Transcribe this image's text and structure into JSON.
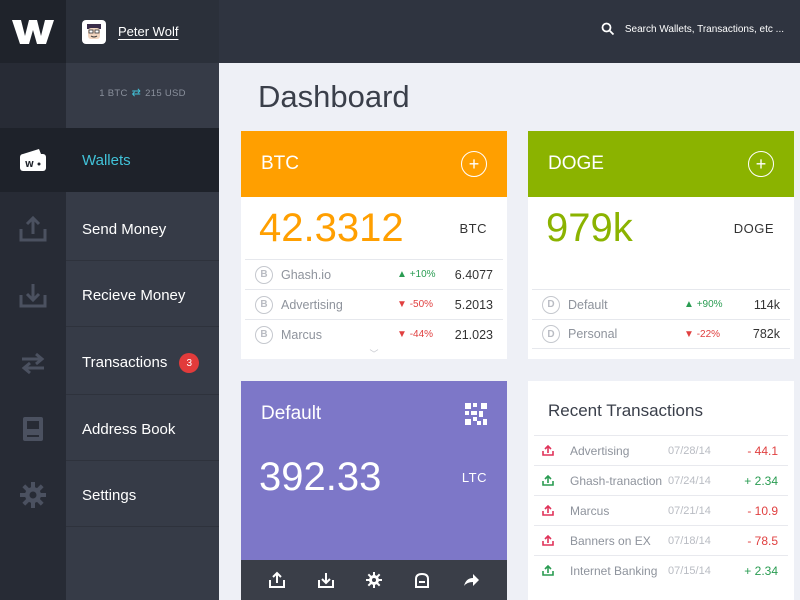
{
  "app": {
    "logo": "W"
  },
  "user": {
    "name": "Peter Wolf"
  },
  "rate": {
    "btc": "1 BTC",
    "usd": "215 USD"
  },
  "nav": {
    "items": [
      {
        "label": "Wallets",
        "icon": "wallet-icon",
        "active": true
      },
      {
        "label": "Send Money",
        "icon": "upload-icon"
      },
      {
        "label": "Recieve Money",
        "icon": "download-icon"
      },
      {
        "label": "Transactions",
        "icon": "transfer-icon",
        "badge": "3"
      },
      {
        "label": "Address Book",
        "icon": "book-icon"
      },
      {
        "label": "Settings",
        "icon": "gear-icon"
      }
    ]
  },
  "search": {
    "placeholder": "Search Wallets, Transactions, etc ..."
  },
  "page": {
    "title": "Dashboard"
  },
  "btc_card": {
    "title": "BTC",
    "value": "42.3312",
    "unit": "BTC",
    "color": "#ff9f00",
    "rows": [
      {
        "name": "Ghash.io",
        "delta": "+10%",
        "dir": "up",
        "amount": "6.4077",
        "coin": "B"
      },
      {
        "name": "Advertising",
        "delta": "-50%",
        "dir": "down",
        "amount": "5.2013",
        "coin": "B"
      },
      {
        "name": "Marcus",
        "delta": "-44%",
        "dir": "down",
        "amount": "21.023",
        "coin": "B"
      }
    ]
  },
  "doge_card": {
    "title": "DOGE",
    "value": "979k",
    "unit": "DOGE",
    "color": "#8bb300",
    "rows": [
      {
        "name": "Default",
        "delta": "+90%",
        "dir": "up",
        "amount": "114k",
        "coin": "D"
      },
      {
        "name": "Personal",
        "delta": "-22%",
        "dir": "down",
        "amount": "782k",
        "coin": "D"
      }
    ]
  },
  "default_card": {
    "title": "Default",
    "value": "392.33",
    "unit": "LTC",
    "color": "#7d77c8"
  },
  "recent": {
    "title": "Recent Transactions",
    "rows": [
      {
        "name": "Advertising",
        "date": "07/28/14",
        "amount": "- 44.1",
        "dir": "out"
      },
      {
        "name": "Ghash-tranaction",
        "date": "07/24/14",
        "amount": "+ 2.34",
        "dir": "in"
      },
      {
        "name": "Marcus",
        "date": "07/21/14",
        "amount": "- 10.9",
        "dir": "out"
      },
      {
        "name": "Banners on EX",
        "date": "07/18/14",
        "amount": "- 78.5",
        "dir": "out"
      },
      {
        "name": "Internet Banking",
        "date": "07/15/14",
        "amount": "+ 2.34",
        "dir": "in"
      }
    ]
  },
  "colors": {
    "accent": "#41c2d8",
    "up": "#2a9c52",
    "down": "#e04040",
    "badge": "#e23b3b"
  }
}
